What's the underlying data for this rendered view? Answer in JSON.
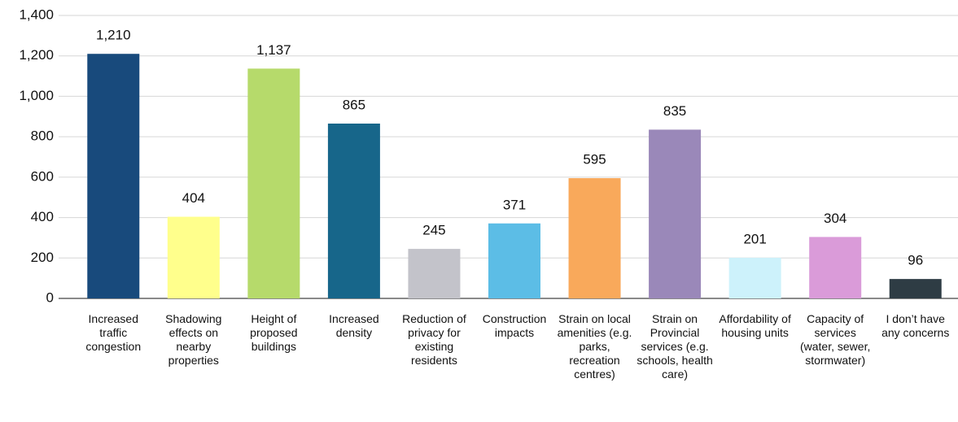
{
  "chart_data": {
    "type": "bar",
    "categories": [
      "Increased traffic congestion",
      "Shadowing effects on nearby properties",
      "Height of proposed buildings",
      "Increased density",
      "Reduction of privacy for existing residents",
      "Construction impacts",
      "Strain on local amenities (e.g. parks, recreation centres)",
      "Strain on Provincial services (e.g. schools, health care)",
      "Affordability of housing units",
      "Capacity of services (water, sewer, stormwater)",
      "I don’t have any concerns"
    ],
    "values": [
      1210,
      404,
      1137,
      865,
      245,
      371,
      595,
      835,
      201,
      304,
      96
    ],
    "value_labels": [
      "1,210",
      "404",
      "1,137",
      "865",
      "245",
      "371",
      "595",
      "835",
      "201",
      "304",
      "96"
    ],
    "colors": [
      "#184a7c",
      "#ffff8c",
      "#b6da6b",
      "#17668a",
      "#c3c3ca",
      "#5cbde6",
      "#f9a95b",
      "#9a88b9",
      "#cdf2fb",
      "#da9bd9",
      "#2e3c44"
    ],
    "ylim": [
      0,
      1400
    ],
    "yticks": [
      0,
      200,
      400,
      600,
      800,
      {
        "value": 1000,
        "label": "1,000"
      },
      {
        "value": 1200,
        "label": "1,200"
      },
      {
        "value": 1400,
        "label": "1,400"
      }
    ],
    "grid": true
  }
}
